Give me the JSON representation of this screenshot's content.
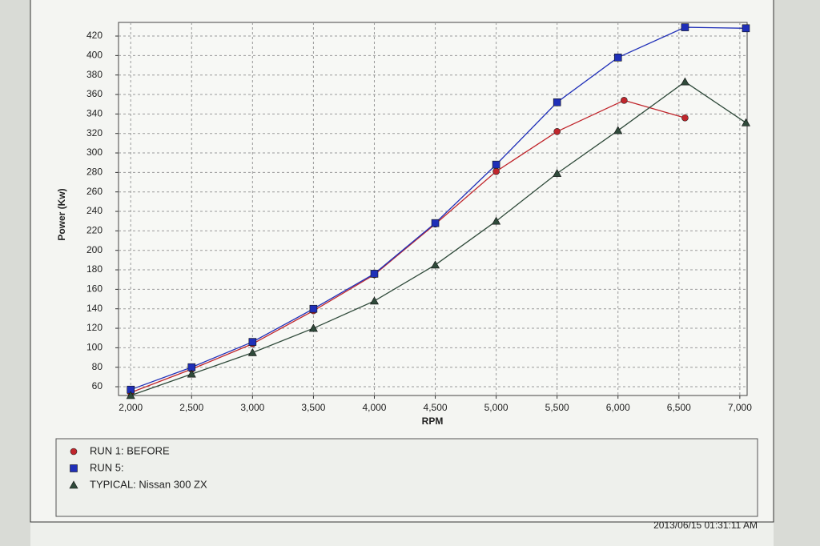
{
  "chart_data": {
    "type": "line",
    "x_label": "RPM",
    "y_label": "Power (Kw)",
    "xlim": [
      1900,
      7060
    ],
    "ylim": [
      51,
      434
    ],
    "xticks": [
      {
        "value": 2000,
        "label": "2,000"
      },
      {
        "value": 2500,
        "label": "2,500"
      },
      {
        "value": 3000,
        "label": "3,000"
      },
      {
        "value": 3500,
        "label": "3,500"
      },
      {
        "value": 4000,
        "label": "4,000"
      },
      {
        "value": 4500,
        "label": "4,500"
      },
      {
        "value": 5000,
        "label": "5,000"
      },
      {
        "value": 5500,
        "label": "5,500"
      },
      {
        "value": 6000,
        "label": "6,000"
      },
      {
        "value": 6500,
        "label": "6,500"
      },
      {
        "value": 7000,
        "label": "7,000"
      }
    ],
    "yticks": [
      60,
      80,
      100,
      120,
      140,
      160,
      180,
      200,
      220,
      240,
      260,
      280,
      300,
      320,
      340,
      360,
      380,
      400,
      420
    ],
    "grid": true,
    "series": [
      {
        "name": "RUN 1: BEFORE",
        "color": "#c0262c",
        "marker": "circle",
        "x": [
          2000,
          2500,
          3000,
          3500,
          4000,
          4500,
          5000,
          5500,
          6050,
          6550
        ],
        "values": [
          54,
          78,
          104,
          138,
          175,
          227,
          281,
          322,
          354,
          336
        ]
      },
      {
        "name": "RUN 5:",
        "color": "#1f2fb8",
        "marker": "square",
        "x": [
          2000,
          2500,
          3000,
          3500,
          4000,
          4500,
          5000,
          5500,
          6000,
          6550,
          7050
        ],
        "values": [
          57,
          80,
          106,
          140,
          176,
          228,
          288,
          352,
          398,
          429,
          428
        ]
      },
      {
        "name": "TYPICAL: Nissan 300 ZX",
        "color": "#2f4a3a",
        "marker": "triangle",
        "x": [
          2000,
          2500,
          3000,
          3500,
          4000,
          4500,
          5000,
          5500,
          6000,
          6550,
          7050
        ],
        "values": [
          51,
          73,
          95,
          120,
          148,
          185,
          230,
          279,
          323,
          373,
          331
        ]
      }
    ],
    "timestamp": "2013/06/15 01:31:11 AM"
  }
}
